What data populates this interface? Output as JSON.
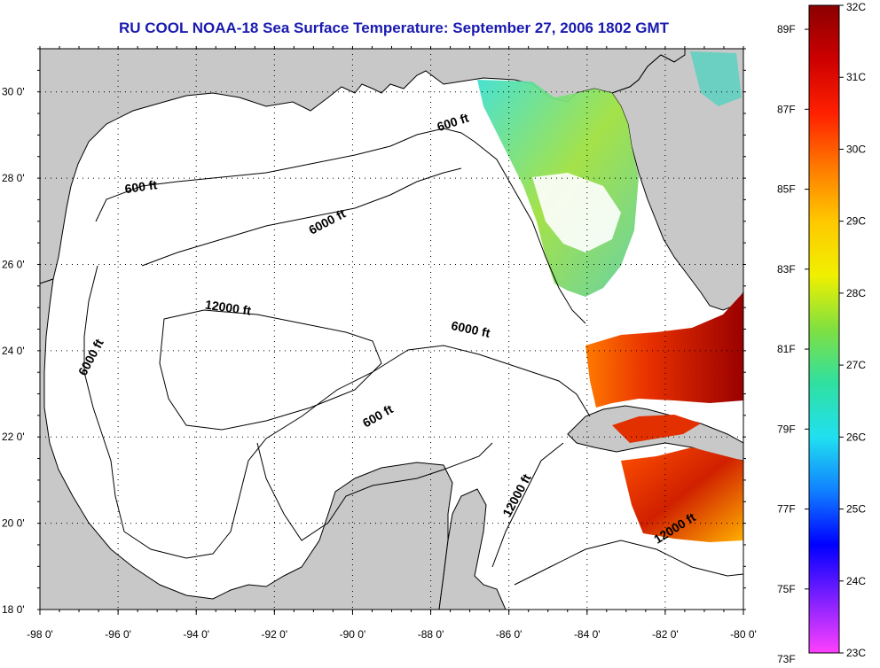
{
  "title": "RU COOL  NOAA-18  Sea Surface Temperature:  September 27, 2006 1802 GMT",
  "map": {
    "lon_range": [
      -98,
      -80
    ],
    "lat_range": [
      18,
      31
    ],
    "x_ticks": [
      "-98 0'",
      "-96 0'",
      "-94 0'",
      "-92 0'",
      "-90 0'",
      "-88 0'",
      "-86 0'",
      "-84 0'",
      "-82 0'",
      "-80 0'"
    ],
    "y_ticks": [
      "18 0'",
      "20 0'",
      "22 0'",
      "24 0'",
      "26 0'",
      "28 0'",
      "30 0'"
    ],
    "grid": "dotted",
    "colors": {
      "land": "#c8c8c8",
      "ocean_no_data": "#ffffff",
      "frame": "#000000",
      "title": "#1a1ab0"
    },
    "contour_labels": [
      {
        "text": "600 ft",
        "lon": -87.4,
        "lat": 29.2,
        "rotate": -18
      },
      {
        "text": "600 ft",
        "lon": -95.4,
        "lat": 27.7,
        "rotate": -8
      },
      {
        "text": "6000 ft",
        "lon": -90.6,
        "lat": 26.9,
        "rotate": -28
      },
      {
        "text": "12000 ft",
        "lon": -93.2,
        "lat": 24.9,
        "rotate": 8
      },
      {
        "text": "6000 ft",
        "lon": -87.0,
        "lat": 24.4,
        "rotate": 12
      },
      {
        "text": "6000 ft",
        "lon": -96.6,
        "lat": 23.8,
        "rotate": -62
      },
      {
        "text": "600 ft",
        "lon": -89.3,
        "lat": 22.4,
        "rotate": -30
      },
      {
        "text": "12000 ft",
        "lon": -85.7,
        "lat": 20.6,
        "rotate": -62
      },
      {
        "text": "12000 ft",
        "lon": -81.7,
        "lat": 19.8,
        "rotate": -32
      }
    ]
  },
  "colorbar": {
    "f_labels": [
      "89F",
      "87F",
      "85F",
      "83F",
      "81F",
      "79F",
      "77F",
      "75F",
      "73F"
    ],
    "c_labels": [
      "32C",
      "31C",
      "30C",
      "29C",
      "28C",
      "27C",
      "26C",
      "25C",
      "24C",
      "23C"
    ],
    "range_c": [
      23,
      32
    ],
    "colors_top_to_bottom": [
      "#8b0000",
      "#cc0000",
      "#ff2000",
      "#ff7a00",
      "#ffc800",
      "#f0f000",
      "#80e040",
      "#30e0a0",
      "#20e0f0",
      "#1080ff",
      "#0000ff",
      "#8020ff",
      "#ff40ff"
    ]
  }
}
